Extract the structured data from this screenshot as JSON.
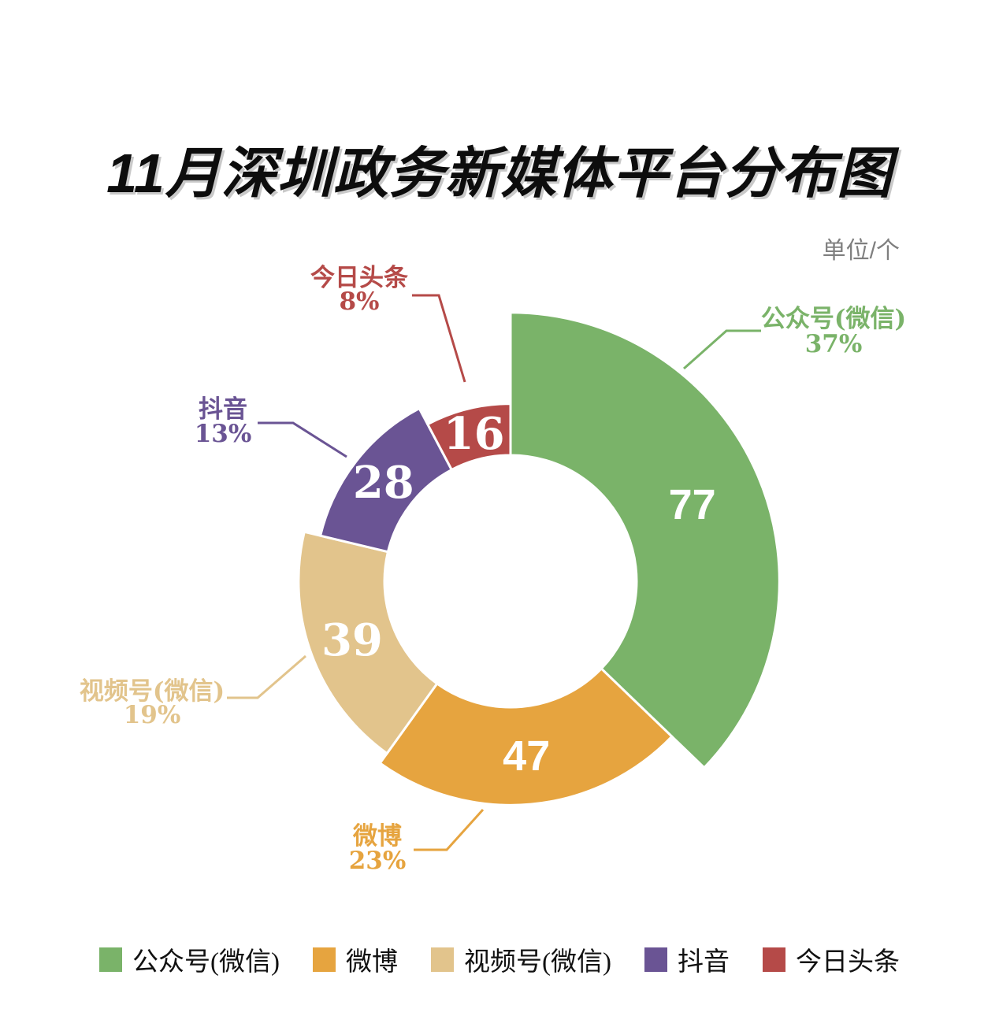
{
  "title": "11月深圳政务新媒体平台分布图",
  "unit_label": "单位/个",
  "chart_data": {
    "type": "pie",
    "variant": "rose-donut",
    "title": "11月深圳政务新媒体平台分布图",
    "unit": "单位/个",
    "categories": [
      "公众号(微信)",
      "微博",
      "视频号(微信)",
      "抖音",
      "今日头条"
    ],
    "values": [
      77,
      47,
      39,
      28,
      16
    ],
    "percents": [
      "37%",
      "23%",
      "19%",
      "13%",
      "8%"
    ],
    "colors": [
      "#7ab369",
      "#e6a43f",
      "#e2c48c",
      "#6a5494",
      "#b54a48"
    ],
    "legend_position": "bottom",
    "start_angle": "top",
    "direction": "clockwise",
    "donut": true,
    "title_color": "#0d0d0d",
    "unit_color": "#7f7f7f"
  }
}
